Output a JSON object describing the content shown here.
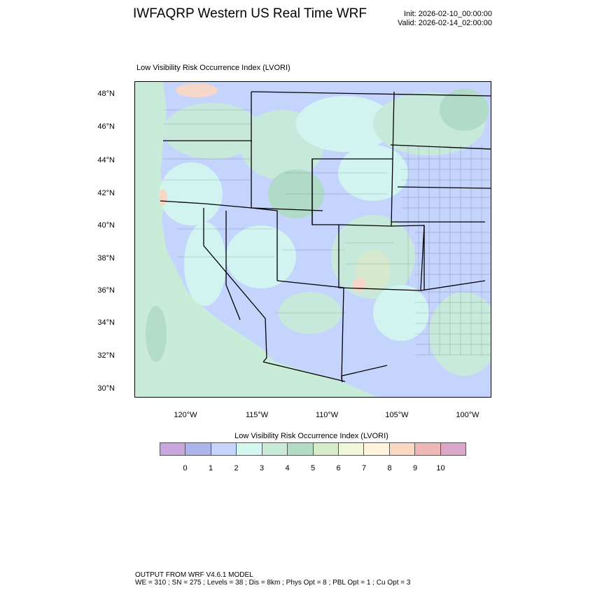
{
  "header": {
    "title": "IWFAQRP Western US Real Time WRF",
    "init": "Init: 2026-02-10_00:00:00",
    "valid": "Valid: 2026-02-14_02:00:00"
  },
  "plot": {
    "subtitle": "Low Visibility Risk Occurrence Index   (LVORI)",
    "lat_ticks": [
      "48°N",
      "46°N",
      "44°N",
      "42°N",
      "40°N",
      "38°N",
      "36°N",
      "34°N",
      "32°N",
      "30°N"
    ],
    "lon_ticks": [
      "120°W",
      "115°W",
      "110°W",
      "105°W",
      "100°W"
    ],
    "ocean_color": "#c8ecd8",
    "dominant_land_color": "#c4d4fc"
  },
  "colorbar": {
    "title": "Low Visibility Risk Occurrence Index  (LVORI)",
    "labels": [
      "0",
      "1",
      "2",
      "3",
      "4",
      "5",
      "6",
      "7",
      "8",
      "9",
      "10"
    ],
    "colors": [
      "#c8a8dc",
      "#b0b4ec",
      "#c4d4fc",
      "#d4f8f0",
      "#c8ecd8",
      "#b0dcc4",
      "#d8ecc8",
      "#f0f8d8",
      "#fff4dc",
      "#fcd8c4",
      "#f0b8b4",
      "#dca8c8"
    ]
  },
  "footer": {
    "line1": "OUTPUT FROM WRF V4.6.1 MODEL",
    "line2": "WE = 310 ; SN = 275 ; Levels = 38 ; Dis = 8km ; Phys Opt = 8 ; PBL Opt = 1 ; Cu Opt = 3"
  }
}
